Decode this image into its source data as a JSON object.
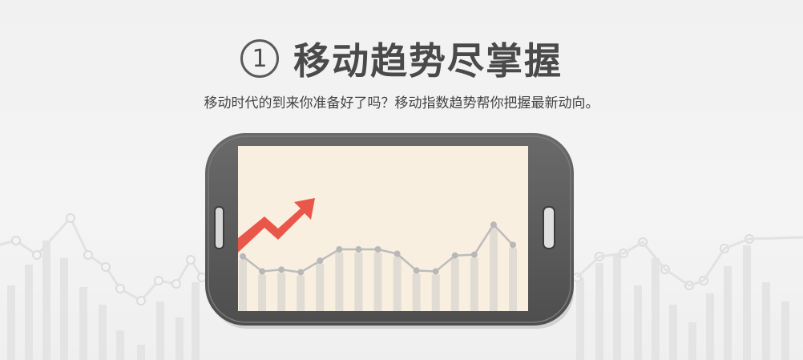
{
  "header": {
    "step_number": "1",
    "title": "移动趋势尽掌握",
    "subtitle": "移动时代的到来你准备好了吗？移动指数趋势帮你把握最新动向。"
  },
  "colors": {
    "phone_body": "#5c5c5c",
    "screen_bg": "#f8efe0",
    "arrow": "#e8574a",
    "bars": "#dcdcdc",
    "line": "#bdbdbd"
  },
  "icons": [
    "trend-arrow-icon",
    "step-number-icon"
  ],
  "chart_data": {
    "type": "line",
    "values": [
      62,
      45,
      47,
      44,
      57,
      70,
      70,
      70,
      65,
      46,
      45,
      63,
      64,
      98,
      75
    ]
  }
}
